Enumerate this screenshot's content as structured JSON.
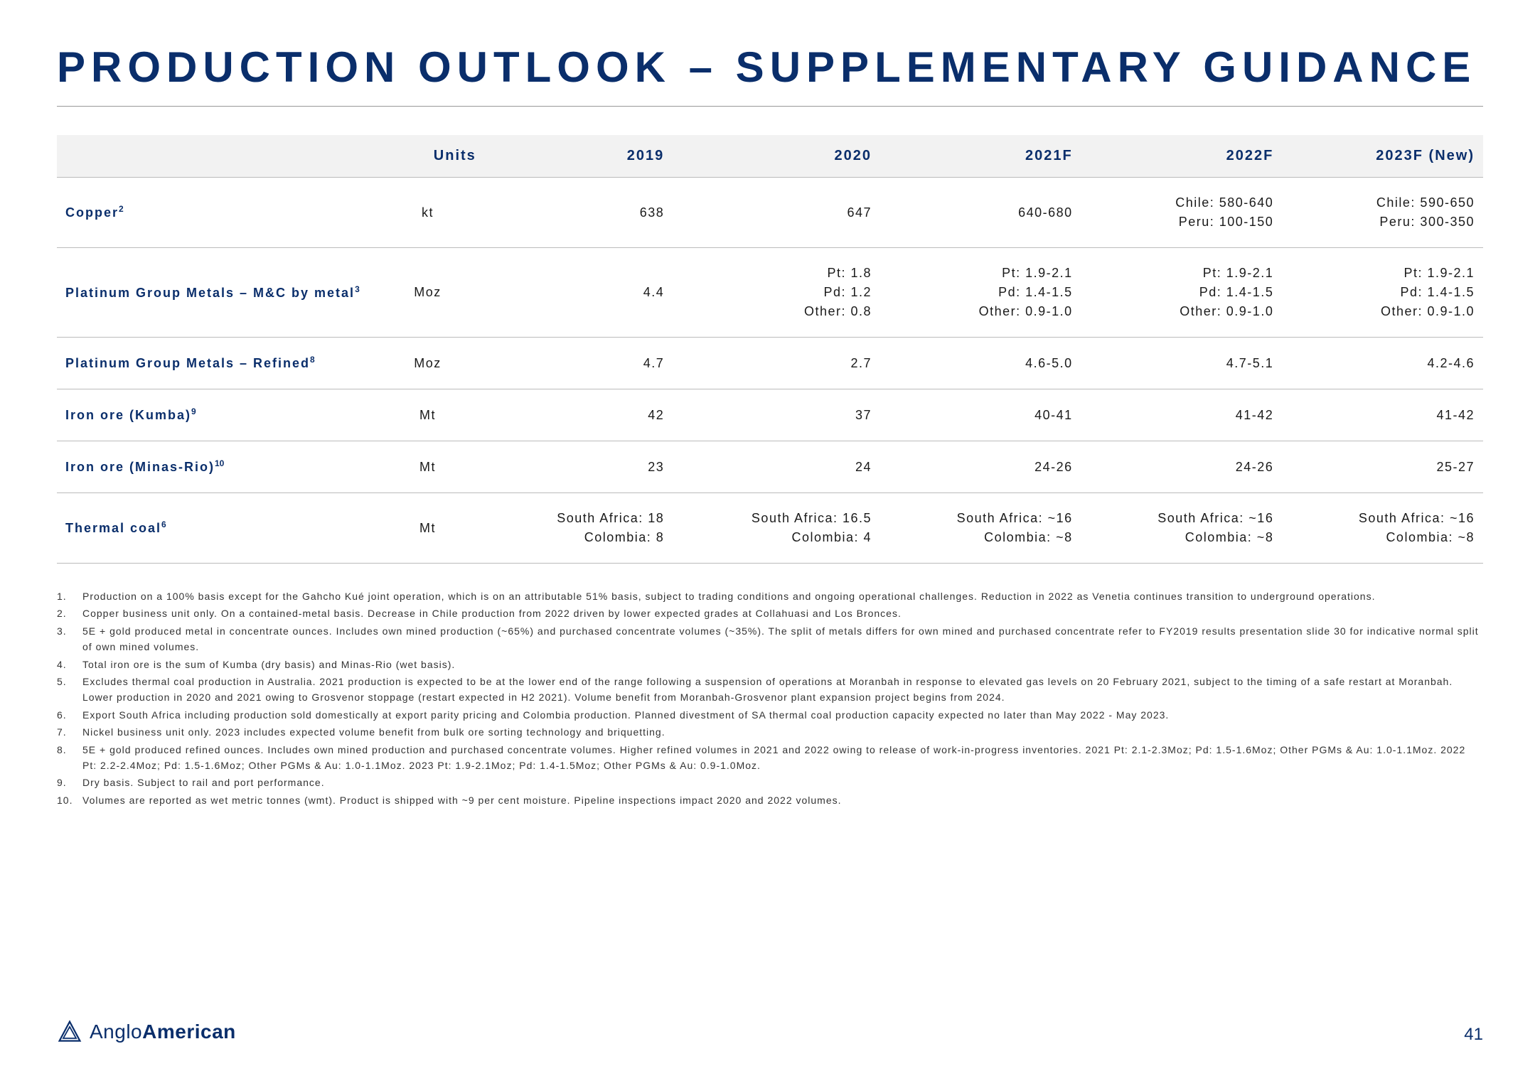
{
  "title": "PRODUCTION OUTLOOK – SUPPLEMENTARY GUIDANCE",
  "columns": [
    "",
    "Units",
    "2019",
    "2020",
    "2021F",
    "2022F",
    "2023F (New)"
  ],
  "rows": [
    {
      "label": "Copper",
      "sup": "2",
      "units": "kt",
      "c2019": "638",
      "c2020": "647",
      "c2021": "640-680",
      "c2022": "Chile: 580-640\nPeru: 100-150",
      "c2023": "Chile: 590-650\nPeru: 300-350"
    },
    {
      "label": "Platinum Group Metals – M&C by metal",
      "sup": "3",
      "units": "Moz",
      "c2019": "4.4",
      "c2020": "Pt: 1.8\nPd: 1.2\nOther: 0.8",
      "c2021": "Pt: 1.9-2.1\nPd: 1.4-1.5\nOther: 0.9-1.0",
      "c2022": "Pt: 1.9-2.1\nPd: 1.4-1.5\nOther: 0.9-1.0",
      "c2023": "Pt: 1.9-2.1\nPd: 1.4-1.5\nOther: 0.9-1.0"
    },
    {
      "label": "Platinum Group Metals – Refined",
      "sup": "8",
      "units": "Moz",
      "c2019": "4.7",
      "c2020": "2.7",
      "c2021": "4.6-5.0",
      "c2022": "4.7-5.1",
      "c2023": "4.2-4.6"
    },
    {
      "label": "Iron ore (Kumba)",
      "sup": "9",
      "units": "Mt",
      "c2019": "42",
      "c2020": "37",
      "c2021": "40-41",
      "c2022": "41-42",
      "c2023": "41-42"
    },
    {
      "label": "Iron ore (Minas-Rio)",
      "sup": "10",
      "units": "Mt",
      "c2019": "23",
      "c2020": "24",
      "c2021": "24-26",
      "c2022": "24-26",
      "c2023": "25-27"
    },
    {
      "label": "Thermal coal",
      "sup": "6",
      "units": "Mt",
      "c2019": "South Africa: 18\nColombia: 8",
      "c2020": "South Africa: 16.5\nColombia: 4",
      "c2021": "South Africa: ~16\nColombia: ~8",
      "c2022": "South Africa: ~16\nColombia: ~8",
      "c2023": "South Africa: ~16\nColombia: ~8"
    }
  ],
  "footnotes": [
    "Production on a 100% basis except for the Gahcho Kué joint operation, which is on an attributable 51% basis, subject to trading conditions and ongoing operational challenges. Reduction in 2022 as Venetia continues transition to underground operations.",
    "Copper business unit only. On a contained-metal basis. Decrease in Chile production from 2022 driven by lower expected grades at Collahuasi and Los Bronces.",
    "5E + gold produced metal in concentrate ounces. Includes own mined production (~65%) and purchased concentrate volumes (~35%). The split of metals differs for own mined and purchased concentrate refer to FY2019 results presentation slide 30 for indicative normal split of own mined volumes.",
    "Total iron ore is the sum of Kumba (dry basis) and Minas-Rio (wet basis).",
    "Excludes thermal coal production in Australia. 2021 production is expected to be at the lower end of the range following a suspension of operations at Moranbah in response to elevated gas levels on 20 February 2021, subject to the timing of a safe restart at Moranbah. Lower production in 2020 and 2021 owing to Grosvenor stoppage (restart expected in H2 2021). Volume benefit from Moranbah-Grosvenor plant expansion project begins from 2024.",
    "Export South Africa including production sold domestically at export parity pricing and Colombia production. Planned divestment of SA thermal coal production capacity expected no later than May 2022 - May 2023.",
    "Nickel business unit only. 2023 includes expected volume benefit from bulk ore sorting technology and briquetting.",
    "5E + gold produced refined ounces. Includes own mined production and purchased concentrate volumes. Higher refined volumes in 2021 and 2022 owing to release of work-in-progress inventories. 2021 Pt: 2.1-2.3Moz; Pd: 1.5-1.6Moz; Other PGMs & Au: 1.0-1.1Moz. 2022 Pt: 2.2-2.4Moz; Pd: 1.5-1.6Moz; Other PGMs & Au: 1.0-1.1Moz. 2023 Pt: 1.9-2.1Moz; Pd: 1.4-1.5Moz; Other PGMs & Au: 0.9-1.0Moz.",
    "Dry basis. Subject to rail and port performance.",
    "Volumes are reported as wet metric tonnes (wmt). Product is shipped with ~9 per cent moisture. Pipeline inspections impact 2020 and 2022 volumes."
  ],
  "logo_text_1": "Anglo",
  "logo_text_2": "American",
  "page_number": "41",
  "colors": {
    "primary": "#0a2e6b",
    "header_bg": "#f2f2f2",
    "border": "#bbbbbb"
  }
}
